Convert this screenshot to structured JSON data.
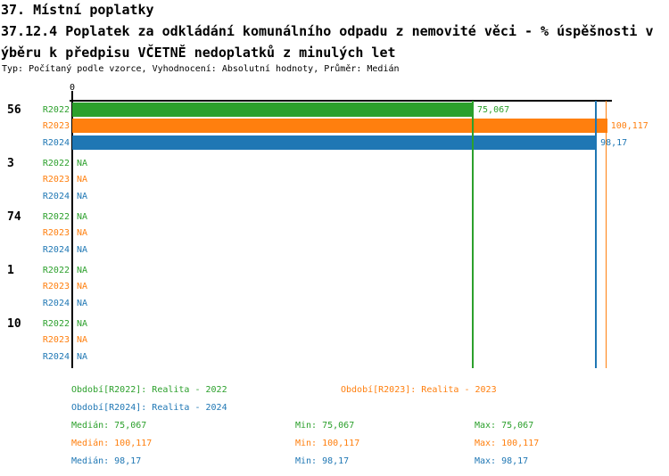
{
  "header": {
    "line1": "37. Místní poplatky",
    "line2": "37.12.4 Poplatek za odkládání komunálního odpadu z nemovité věci - % úspěšnosti v",
    "line3": "ýběru k předpisu VČETNĚ nedoplatků z minulých let",
    "meta": "Typ: Počítaný podle vzorce, Vyhodnocení: Absolutní hodnoty, Průměr: Medián"
  },
  "colors": {
    "R2022": "#2ca02c",
    "R2023": "#ff7f0e",
    "R2024": "#1f77b4",
    "axis": "#000000"
  },
  "chart_data": {
    "type": "bar",
    "orientation": "horizontal",
    "title": "37.12.4 Poplatek za odkládání komunálního odpadu z nemovité věci - % úspěšnosti výběru k předpisu VČETNĚ nedoplatků z minulých let",
    "x_axis": {
      "zero_label": "0",
      "min": 0,
      "implied_max": 101
    },
    "series_names": [
      "R2022",
      "R2023",
      "R2024"
    ],
    "groups": [
      {
        "label": "56",
        "rows": [
          {
            "series": "R2022",
            "value": 75.067,
            "display": "75,067"
          },
          {
            "series": "R2023",
            "value": 100.117,
            "display": "100,117"
          },
          {
            "series": "R2024",
            "value": 98.17,
            "display": "98,17"
          }
        ]
      },
      {
        "label": "3",
        "rows": [
          {
            "series": "R2022",
            "value": null,
            "display": "NA"
          },
          {
            "series": "R2023",
            "value": null,
            "display": "NA"
          },
          {
            "series": "R2024",
            "value": null,
            "display": "NA"
          }
        ]
      },
      {
        "label": "74",
        "rows": [
          {
            "series": "R2022",
            "value": null,
            "display": "NA"
          },
          {
            "series": "R2023",
            "value": null,
            "display": "NA"
          },
          {
            "series": "R2024",
            "value": null,
            "display": "NA"
          }
        ]
      },
      {
        "label": "1",
        "rows": [
          {
            "series": "R2022",
            "value": null,
            "display": "NA"
          },
          {
            "series": "R2023",
            "value": null,
            "display": "NA"
          },
          {
            "series": "R2024",
            "value": null,
            "display": "NA"
          }
        ]
      },
      {
        "label": "10",
        "rows": [
          {
            "series": "R2022",
            "value": null,
            "display": "NA"
          },
          {
            "series": "R2023",
            "value": null,
            "display": "NA"
          },
          {
            "series": "R2024",
            "value": null,
            "display": "NA"
          }
        ]
      }
    ],
    "reference_lines": [
      {
        "series": "R2022",
        "value": 75.067
      },
      {
        "series": "R2024",
        "value": 98.17
      },
      {
        "series": "R2023",
        "value": 100.117
      }
    ],
    "stats": [
      {
        "series": "R2022",
        "median": 75.067,
        "min": 75.067,
        "max": 75.067
      },
      {
        "series": "R2023",
        "median": 100.117,
        "min": 100.117,
        "max": 100.117
      },
      {
        "series": "R2024",
        "median": 98.17,
        "min": 98.17,
        "max": 98.17
      }
    ]
  },
  "legend": {
    "period_rows": [
      [
        {
          "label": "Období[R2022]: Realita - 2022",
          "series": "R2022"
        },
        {
          "label": "Období[R2023]: Realita - 2023",
          "series": "R2023"
        }
      ],
      [
        {
          "label": "Období[R2024]: Realita - 2024",
          "series": "R2024"
        }
      ]
    ],
    "stat_rows": [
      {
        "series": "R2022",
        "median": "Medián: 75,067",
        "min": "Min: 75,067",
        "max": "Max: 75,067"
      },
      {
        "series": "R2023",
        "median": "Medián: 100,117",
        "min": "Min: 100,117",
        "max": "Max: 100,117"
      },
      {
        "series": "R2024",
        "median": "Medián: 98,17",
        "min": "Min: 98,17",
        "max": "Max: 98,17"
      }
    ]
  }
}
